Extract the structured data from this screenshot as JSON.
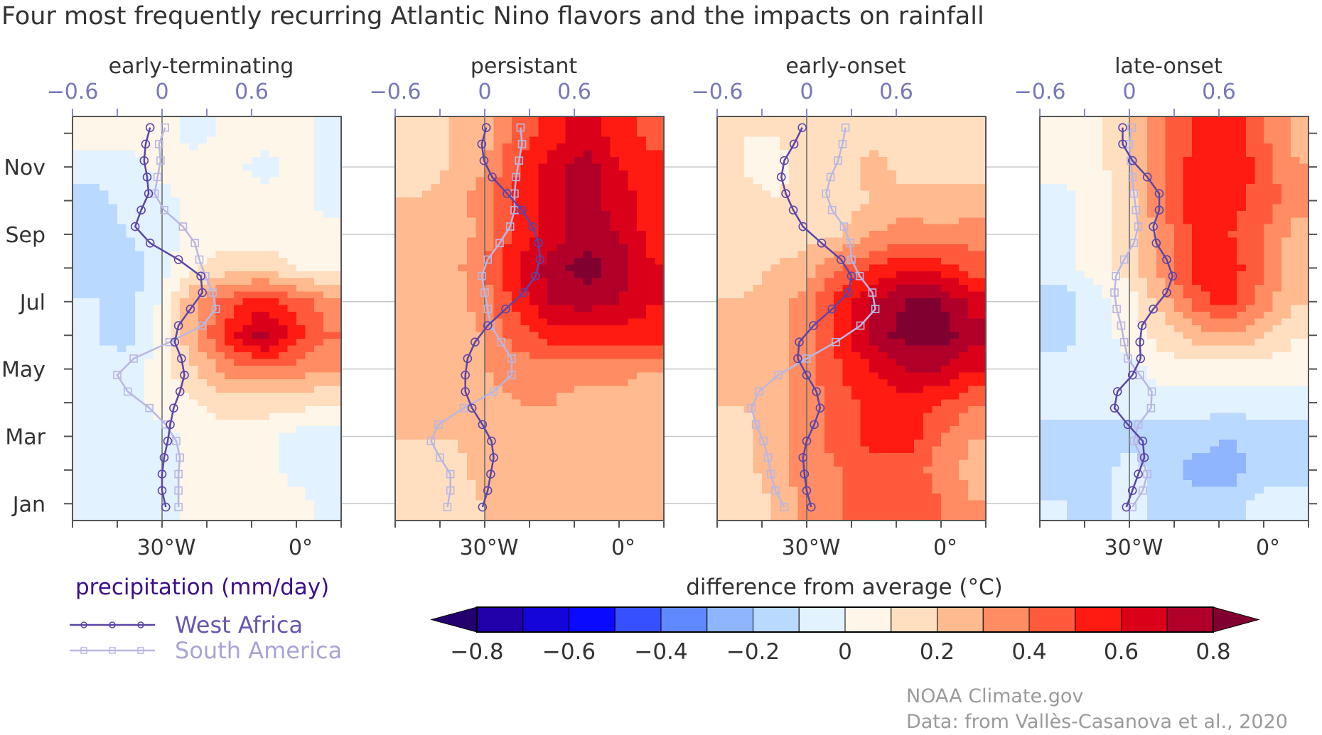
{
  "title": "Four most frequently recurring Atlantic Nino flavors and the impacts on rainfall",
  "credits": [
    "NOAA Climate.gov",
    "Data: from Vallès-Casanova et al., 2020"
  ],
  "axes": {
    "month_labels": [
      {
        "label": "Nov",
        "month": 11
      },
      {
        "label": "Sep",
        "month": 9
      },
      {
        "label": "Jul",
        "month": 7
      },
      {
        "label": "May",
        "month": 5
      },
      {
        "label": "Mar",
        "month": 3
      },
      {
        "label": "Jan",
        "month": 1
      }
    ],
    "time_range": [
      0.5,
      12.5
    ],
    "lon_labels": [
      {
        "label": "30°W",
        "lon": -30
      },
      {
        "label": "0°",
        "lon": 0
      }
    ],
    "lon_range": [
      -50,
      10
    ],
    "precip_ticks": [
      {
        "label": "−0.6",
        "value": -0.6
      },
      {
        "label": "0",
        "value": 0
      },
      {
        "label": "0.6",
        "value": 0.6
      }
    ],
    "precip_range": [
      -0.6,
      1.2
    ]
  },
  "legend": {
    "title": "precipitation (mm/day)",
    "items": [
      {
        "name": "West Africa",
        "marker": "circle",
        "color": "#5b45a8"
      },
      {
        "name": "South America",
        "marker": "square",
        "color": "#b9b7e2"
      }
    ]
  },
  "colorbar": {
    "title": "difference from average (°C)",
    "levels": [
      -0.8,
      -0.7,
      -0.6,
      -0.5,
      -0.4,
      -0.3,
      -0.2,
      -0.1,
      0,
      0.1,
      0.2,
      0.3,
      0.4,
      0.5,
      0.6,
      0.7,
      0.8
    ],
    "colors": [
      "#2200aa",
      "#1505d8",
      "#0a0aff",
      "#3650ff",
      "#6088ff",
      "#8fb5ff",
      "#b9d9ff",
      "#e3f2ff",
      "#fff6ea",
      "#ffdfc0",
      "#ffba8f",
      "#ff8c62",
      "#ff5a3c",
      "#ff1a12",
      "#db0019",
      "#b0002a"
    ],
    "under_color": "#22006e",
    "over_color": "#800030",
    "labels": [
      "−0.8",
      "−0.6",
      "−0.4",
      "−0.2",
      "0",
      "0.2",
      "0.4",
      "0.6",
      "0.8"
    ],
    "label_values": [
      -0.8,
      -0.6,
      -0.4,
      -0.2,
      0,
      0.2,
      0.4,
      0.6,
      0.8
    ]
  },
  "chart_data": [
    {
      "type": "heatmap",
      "title": "early-terminating",
      "lon": [
        -45,
        -37.5,
        -30,
        -22.5,
        -15,
        -7.5,
        0,
        7.5
      ],
      "months": [
        12,
        11,
        10,
        9,
        8,
        7,
        6,
        5,
        4,
        3,
        2,
        1
      ],
      "sst_anomaly": [
        [
          0.05,
          0.05,
          0.05,
          -0.05,
          0.05,
          0.05,
          0.05,
          -0.05
        ],
        [
          -0.05,
          -0.05,
          0.05,
          0.05,
          0.05,
          -0.05,
          0.05,
          -0.05
        ],
        [
          -0.15,
          -0.05,
          -0.05,
          0.05,
          0.05,
          0.05,
          0.05,
          -0.05
        ],
        [
          -0.15,
          -0.1,
          -0.05,
          0.05,
          0.05,
          0.05,
          0.05,
          0.05
        ],
        [
          -0.15,
          -0.15,
          -0.05,
          0.1,
          0.15,
          0.15,
          0.1,
          0.05
        ],
        [
          -0.1,
          -0.15,
          0.02,
          0.3,
          0.45,
          0.55,
          0.45,
          0.35
        ],
        [
          -0.1,
          -0.15,
          0.05,
          0.3,
          0.55,
          0.75,
          0.55,
          0.4
        ],
        [
          -0.05,
          -0.05,
          0.05,
          0.2,
          0.35,
          0.4,
          0.35,
          0.3
        ],
        [
          -0.05,
          -0.05,
          0.05,
          0.1,
          0.15,
          0.15,
          0.15,
          0.1
        ],
        [
          -0.05,
          -0.05,
          -0.05,
          0.05,
          0.05,
          0.05,
          -0.05,
          -0.05
        ],
        [
          -0.05,
          -0.05,
          -0.05,
          0.05,
          0.05,
          0.05,
          -0.05,
          -0.05
        ],
        [
          -0.05,
          -0.05,
          -0.05,
          0.05,
          0.05,
          0.05,
          0.05,
          -0.05
        ]
      ],
      "precip_time": [
        0.9,
        1.39,
        1.88,
        2.37,
        2.86,
        3.35,
        3.84,
        4.33,
        4.82,
        5.31,
        5.8,
        6.29,
        6.78,
        7.27,
        7.76,
        8.25,
        8.74,
        9.23,
        9.72,
        10.21,
        10.7,
        11.19,
        11.68,
        12.17
      ],
      "series": [
        {
          "name": "West Africa",
          "values": [
            0.025,
            0,
            0,
            0.014,
            0.038,
            0.055,
            0.078,
            0.12,
            0.15,
            0.13,
            0.085,
            0.11,
            0.19,
            0.27,
            0.26,
            0.11,
            -0.08,
            -0.18,
            -0.14,
            -0.09,
            -0.1,
            -0.12,
            -0.11,
            -0.08
          ]
        },
        {
          "name": "South America",
          "values": [
            0.11,
            0.11,
            0.11,
            0.12,
            0.095,
            0.025,
            -0.085,
            -0.23,
            -0.3,
            -0.19,
            0.05,
            0.27,
            0.36,
            0.34,
            0.29,
            0.25,
            0.22,
            0.14,
            0.014,
            -0.05,
            -0.03,
            -0.01,
            -0.02,
            0.02
          ]
        }
      ]
    },
    {
      "type": "heatmap",
      "title": "persistant",
      "lon": [
        -45,
        -37.5,
        -30,
        -22.5,
        -15,
        -7.5,
        0,
        7.5
      ],
      "months": [
        12,
        11,
        10,
        9,
        8,
        7,
        6,
        5,
        4,
        3,
        2,
        1
      ],
      "sst_anomaly": [
        [
          0.15,
          0.2,
          0.25,
          0.45,
          0.55,
          0.65,
          0.55,
          0.45
        ],
        [
          0.15,
          0.2,
          0.3,
          0.5,
          0.65,
          0.75,
          0.6,
          0.55
        ],
        [
          0.2,
          0.25,
          0.35,
          0.55,
          0.65,
          0.75,
          0.65,
          0.55
        ],
        [
          0.25,
          0.2,
          0.35,
          0.55,
          0.65,
          0.75,
          0.7,
          0.55
        ],
        [
          0.2,
          0.25,
          0.4,
          0.6,
          0.75,
          0.85,
          0.75,
          0.6
        ],
        [
          0.2,
          0.25,
          0.35,
          0.55,
          0.7,
          0.75,
          0.7,
          0.6
        ],
        [
          0.2,
          0.25,
          0.3,
          0.45,
          0.55,
          0.55,
          0.55,
          0.55
        ],
        [
          0.2,
          0.25,
          0.3,
          0.35,
          0.35,
          0.35,
          0.35,
          0.3
        ],
        [
          0.2,
          0.2,
          0.25,
          0.3,
          0.3,
          0.25,
          0.25,
          0.2
        ],
        [
          0.2,
          0.2,
          0.25,
          0.3,
          0.25,
          0.25,
          0.25,
          0.25
        ],
        [
          0.15,
          0.15,
          0.25,
          0.25,
          0.25,
          0.25,
          0.25,
          0.25
        ],
        [
          0.1,
          0.15,
          0.2,
          0.25,
          0.25,
          0.3,
          0.25,
          0.25
        ]
      ],
      "precip_time": [
        0.9,
        1.39,
        1.88,
        2.37,
        2.86,
        3.35,
        3.84,
        4.33,
        4.82,
        5.31,
        5.8,
        6.29,
        6.78,
        7.27,
        7.76,
        8.25,
        8.74,
        9.23,
        9.72,
        10.21,
        10.7,
        11.19,
        11.68,
        12.17
      ],
      "series": [
        {
          "name": "West Africa",
          "values": [
            -0.015,
            0.02,
            0.04,
            0.06,
            0.045,
            -0.015,
            -0.085,
            -0.13,
            -0.13,
            -0.115,
            -0.065,
            0.02,
            0.14,
            0.26,
            0.34,
            0.37,
            0.36,
            0.32,
            0.25,
            0.15,
            0.05,
            -0.005,
            -0.02,
            0.01
          ]
        },
        {
          "name": "South America",
          "values": [
            -0.25,
            -0.23,
            -0.23,
            -0.3,
            -0.36,
            -0.31,
            -0.14,
            0.06,
            0.18,
            0.18,
            0.11,
            0.04,
            0.02,
            0,
            -0.02,
            0.02,
            0.1,
            0.17,
            0.2,
            0.2,
            0.21,
            0.23,
            0.25,
            0.24
          ]
        }
      ]
    },
    {
      "type": "heatmap",
      "title": "early-onset",
      "lon": [
        -45,
        -37.5,
        -30,
        -22.5,
        -15,
        -7.5,
        0,
        7.5
      ],
      "months": [
        12,
        11,
        10,
        9,
        8,
        7,
        6,
        5,
        4,
        3,
        2,
        1
      ],
      "sst_anomaly": [
        [
          0.1,
          0.1,
          0.15,
          0.15,
          0.15,
          0.15,
          0.15,
          0.1
        ],
        [
          0.1,
          0.05,
          0.15,
          0.15,
          0.25,
          0.15,
          0.2,
          0.15
        ],
        [
          0.15,
          0.1,
          0.15,
          0.15,
          0.2,
          0.25,
          0.2,
          0.25
        ],
        [
          0.15,
          0.15,
          0.15,
          0.2,
          0.3,
          0.35,
          0.35,
          0.35
        ],
        [
          0.15,
          0.2,
          0.25,
          0.4,
          0.5,
          0.6,
          0.55,
          0.45
        ],
        [
          0.2,
          0.25,
          0.35,
          0.55,
          0.7,
          0.8,
          0.8,
          0.65
        ],
        [
          0.2,
          0.25,
          0.35,
          0.55,
          0.75,
          0.85,
          0.85,
          0.75
        ],
        [
          0.2,
          0.25,
          0.35,
          0.5,
          0.6,
          0.7,
          0.7,
          0.6
        ],
        [
          0.2,
          0.25,
          0.35,
          0.45,
          0.55,
          0.55,
          0.5,
          0.4
        ],
        [
          0.15,
          0.25,
          0.35,
          0.45,
          0.55,
          0.55,
          0.4,
          0.3
        ],
        [
          0.15,
          0.25,
          0.35,
          0.4,
          0.45,
          0.45,
          0.35,
          0.25
        ],
        [
          0.15,
          0.2,
          0.35,
          0.4,
          0.45,
          0.5,
          0.4,
          0.3
        ]
      ],
      "precip_time": [
        0.9,
        1.39,
        1.88,
        2.37,
        2.86,
        3.35,
        3.84,
        4.33,
        4.82,
        5.31,
        5.8,
        6.29,
        6.78,
        7.27,
        7.76,
        8.25,
        8.74,
        9.23,
        9.72,
        10.21,
        10.7,
        11.19,
        11.68,
        12.17
      ],
      "series": [
        {
          "name": "West Africa",
          "values": [
            0.03,
            0,
            -0.015,
            -0.025,
            0,
            0.05,
            0.09,
            0.065,
            0,
            -0.06,
            -0.05,
            0.045,
            0.17,
            0.28,
            0.3,
            0.23,
            0.1,
            -0.025,
            -0.09,
            -0.14,
            -0.17,
            -0.15,
            -0.085,
            -0.03
          ]
        },
        {
          "name": "South America",
          "values": [
            -0.15,
            -0.21,
            -0.24,
            -0.26,
            -0.29,
            -0.34,
            -0.37,
            -0.32,
            -0.19,
            0,
            0.195,
            0.36,
            0.46,
            0.44,
            0.355,
            0.3,
            0.29,
            0.25,
            0.17,
            0.13,
            0.16,
            0.21,
            0.24,
            0.26
          ]
        }
      ]
    },
    {
      "type": "heatmap",
      "title": "late-onset",
      "lon": [
        -45,
        -37.5,
        -30,
        -22.5,
        -15,
        -7.5,
        0,
        7.5
      ],
      "months": [
        12,
        11,
        10,
        9,
        8,
        7,
        6,
        5,
        4,
        3,
        2,
        1
      ],
      "sst_anomaly": [
        [
          0.05,
          0.05,
          0.2,
          0.4,
          0.5,
          0.55,
          0.4,
          0.25
        ],
        [
          0.05,
          0.05,
          0.2,
          0.4,
          0.55,
          0.6,
          0.45,
          0.3
        ],
        [
          -0.05,
          0.05,
          0.15,
          0.4,
          0.55,
          0.55,
          0.45,
          0.35
        ],
        [
          -0.05,
          0.05,
          0.15,
          0.35,
          0.55,
          0.5,
          0.4,
          0.25
        ],
        [
          -0.05,
          0.05,
          0.15,
          0.35,
          0.55,
          0.55,
          0.4,
          0.2
        ],
        [
          -0.15,
          -0.05,
          0.05,
          0.25,
          0.45,
          0.55,
          0.35,
          0.2
        ],
        [
          -0.15,
          -0.05,
          0.05,
          0.15,
          0.25,
          0.3,
          0.2,
          0.1
        ],
        [
          -0.05,
          -0.05,
          -0.05,
          0.05,
          0.05,
          0.05,
          0.05,
          0.05
        ],
        [
          -0.05,
          -0.05,
          -0.05,
          -0.05,
          -0.05,
          -0.05,
          -0.05,
          -0.05
        ],
        [
          -0.15,
          -0.15,
          -0.15,
          -0.15,
          -0.15,
          -0.2,
          -0.15,
          -0.15
        ],
        [
          -0.15,
          -0.15,
          -0.05,
          -0.15,
          -0.25,
          -0.25,
          -0.15,
          -0.15
        ],
        [
          -0.1,
          -0.15,
          -0.05,
          -0.15,
          -0.15,
          -0.15,
          -0.05,
          -0.05
        ]
      ],
      "precip_time": [
        0.9,
        1.39,
        1.88,
        2.37,
        2.86,
        3.35,
        3.84,
        4.33,
        4.82,
        5.31,
        5.8,
        6.29,
        6.78,
        7.27,
        7.76,
        8.25,
        8.74,
        9.23,
        9.72,
        10.21,
        10.7,
        11.19,
        11.68,
        12.17
      ],
      "series": [
        {
          "name": "West Africa",
          "values": [
            -0.02,
            0.02,
            0.06,
            0.1,
            0.09,
            -0.01,
            -0.1,
            -0.08,
            0.02,
            0.075,
            0.07,
            0.085,
            0.16,
            0.25,
            0.29,
            0.25,
            0.18,
            0.16,
            0.2,
            0.2,
            0.12,
            0.02,
            -0.045,
            -0.045
          ]
        },
        {
          "name": "South America",
          "values": [
            0.02,
            0.09,
            0.12,
            0.08,
            0.03,
            0.06,
            0.145,
            0.15,
            0.07,
            -0.01,
            -0.035,
            -0.055,
            -0.085,
            -0.1,
            -0.09,
            -0.035,
            0.03,
            0.06,
            0.045,
            0.03,
            0.02,
            0.01,
            0,
            0.015
          ]
        }
      ]
    }
  ]
}
